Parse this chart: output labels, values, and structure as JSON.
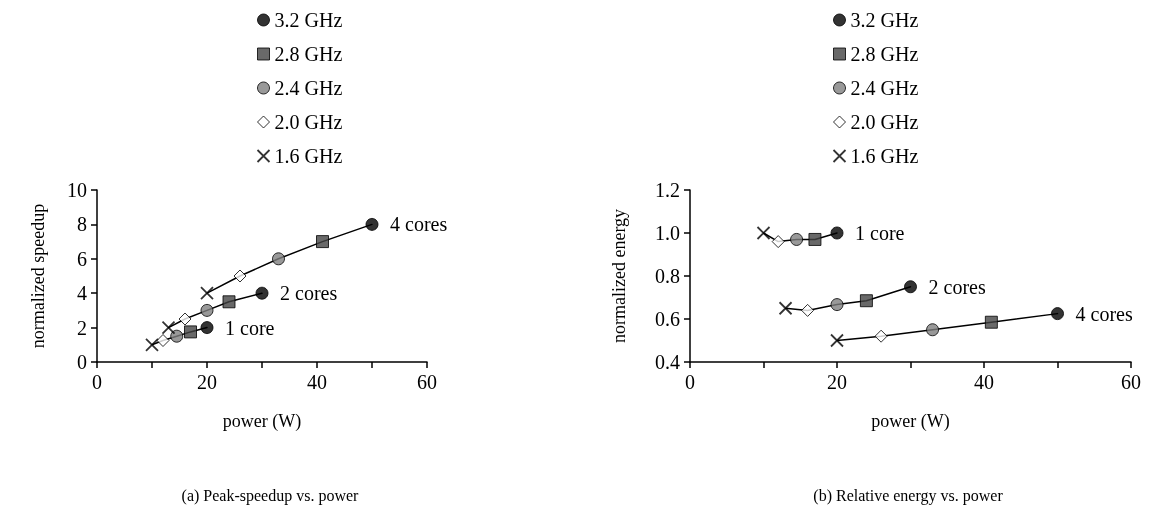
{
  "chart_data": [
    {
      "type": "line",
      "title": "(a) Peak-speedup vs. power",
      "xlabel": "power (W)",
      "ylabel": "normalized speedup",
      "xlim": [
        0,
        60
      ],
      "xticks": [
        0,
        {
          "value": 10,
          "label": null
        },
        20,
        {
          "value": 30,
          "label": null
        },
        40,
        {
          "value": 50,
          "label": null
        },
        60
      ],
      "ylim": [
        0,
        10
      ],
      "yticks": [
        0,
        2,
        4,
        6,
        8,
        10
      ],
      "grid": false,
      "legend": "top",
      "series": [
        {
          "color": "#000000",
          "marker": "none",
          "line_style": "solid",
          "x": [
            10,
            12,
            14.5,
            17,
            20
          ],
          "values": [
            1,
            1.25,
            1.5,
            1.75,
            2
          ]
        },
        {
          "color": "#000000",
          "marker": "none",
          "line_style": "solid",
          "x": [
            13,
            16,
            20,
            24,
            30
          ],
          "values": [
            2,
            2.5,
            3,
            3.5,
            4
          ]
        },
        {
          "color": "#000000",
          "marker": "none",
          "line_style": "solid",
          "x": [
            20,
            26,
            33,
            41,
            50
          ],
          "values": [
            4,
            5,
            6,
            7,
            8
          ]
        },
        {
          "type": "scatter",
          "name": "3.2 GHz",
          "color": "#000000",
          "marker": "circle",
          "x": [
            20,
            30,
            50
          ],
          "values": [
            2,
            4,
            8
          ]
        },
        {
          "type": "scatter",
          "name": "2.8 GHz",
          "color": "#444444",
          "marker": "square",
          "x": [
            17,
            24,
            41
          ],
          "values": [
            1.75,
            3.5,
            7
          ]
        },
        {
          "type": "scatter",
          "name": "2.4 GHz",
          "color": "#808080",
          "marker": "circle",
          "x": [
            14.5,
            20,
            33
          ],
          "values": [
            1.5,
            3,
            6
          ]
        },
        {
          "type": "scatter",
          "name": "2.0 GHz",
          "color": "#ffffff",
          "marker": "diamond",
          "x": [
            12,
            16,
            26
          ],
          "values": [
            1.25,
            2.5,
            5
          ]
        },
        {
          "type": "scatter",
          "name": "1.6 GHz",
          "color": "#000000",
          "marker": "cross",
          "x": [
            10,
            13,
            20
          ],
          "values": [
            1,
            2,
            4
          ]
        }
      ],
      "annotations": [
        {
          "text": "1 core",
          "x": 20,
          "y": 2
        },
        {
          "text": "2 cores",
          "x": 30,
          "y": 4
        },
        {
          "text": "4 cores",
          "x": 50,
          "y": 8
        }
      ]
    },
    {
      "type": "line",
      "title": "(b) Relative energy vs. power",
      "xlabel": "power (W)",
      "ylabel": "normalized energy",
      "xlim": [
        0,
        60
      ],
      "xticks": [
        0,
        {
          "value": 10,
          "label": null
        },
        20,
        {
          "value": 30,
          "label": null
        },
        40,
        {
          "value": 50,
          "label": null
        },
        60
      ],
      "ylim": [
        0.4,
        1.2
      ],
      "yticks": [
        0.4,
        0.6,
        0.8,
        {
          "value": 1,
          "label": "1.0"
        },
        1.2
      ],
      "grid": false,
      "legend": "top",
      "series": [
        {
          "color": "#000000",
          "marker": "none",
          "line_style": "solid",
          "x": [
            10,
            12,
            14.5,
            17,
            20
          ],
          "values": [
            1,
            0.96,
            0.97,
            0.97,
            1
          ]
        },
        {
          "color": "#000000",
          "marker": "none",
          "line_style": "solid",
          "x": [
            13,
            16,
            20,
            24,
            30
          ],
          "values": [
            0.65,
            0.64,
            0.667,
            0.685,
            0.75
          ]
        },
        {
          "color": "#000000",
          "marker": "none",
          "line_style": "solid",
          "x": [
            20,
            26,
            33,
            41,
            50
          ],
          "values": [
            0.5,
            0.52,
            0.55,
            0.585,
            0.625
          ]
        },
        {
          "type": "scatter",
          "name": "3.2 GHz",
          "color": "#000000",
          "marker": "circle",
          "x": [
            20,
            30,
            50
          ],
          "values": [
            1,
            0.75,
            0.625
          ]
        },
        {
          "type": "scatter",
          "name": "2.8 GHz",
          "color": "#444444",
          "marker": "square",
          "x": [
            17,
            24,
            41
          ],
          "values": [
            0.97,
            0.685,
            0.585
          ]
        },
        {
          "type": "scatter",
          "name": "2.4 GHz",
          "color": "#808080",
          "marker": "circle",
          "x": [
            14.5,
            20,
            33
          ],
          "values": [
            0.97,
            0.667,
            0.55
          ]
        },
        {
          "type": "scatter",
          "name": "2.0 GHz",
          "color": "#ffffff",
          "marker": "diamond",
          "x": [
            12,
            16,
            26
          ],
          "values": [
            0.96,
            0.64,
            0.52
          ]
        },
        {
          "type": "scatter",
          "name": "1.6 GHz",
          "color": "#000000",
          "marker": "cross",
          "x": [
            10,
            13,
            20
          ],
          "values": [
            1,
            0.65,
            0.5
          ]
        }
      ],
      "annotations": [
        {
          "text": "1 core",
          "x": 20,
          "y": 1
        },
        {
          "text": "2 cores",
          "x": 30,
          "y": 0.75
        },
        {
          "text": "4 cores",
          "x": 50,
          "y": 0.625
        }
      ]
    }
  ]
}
